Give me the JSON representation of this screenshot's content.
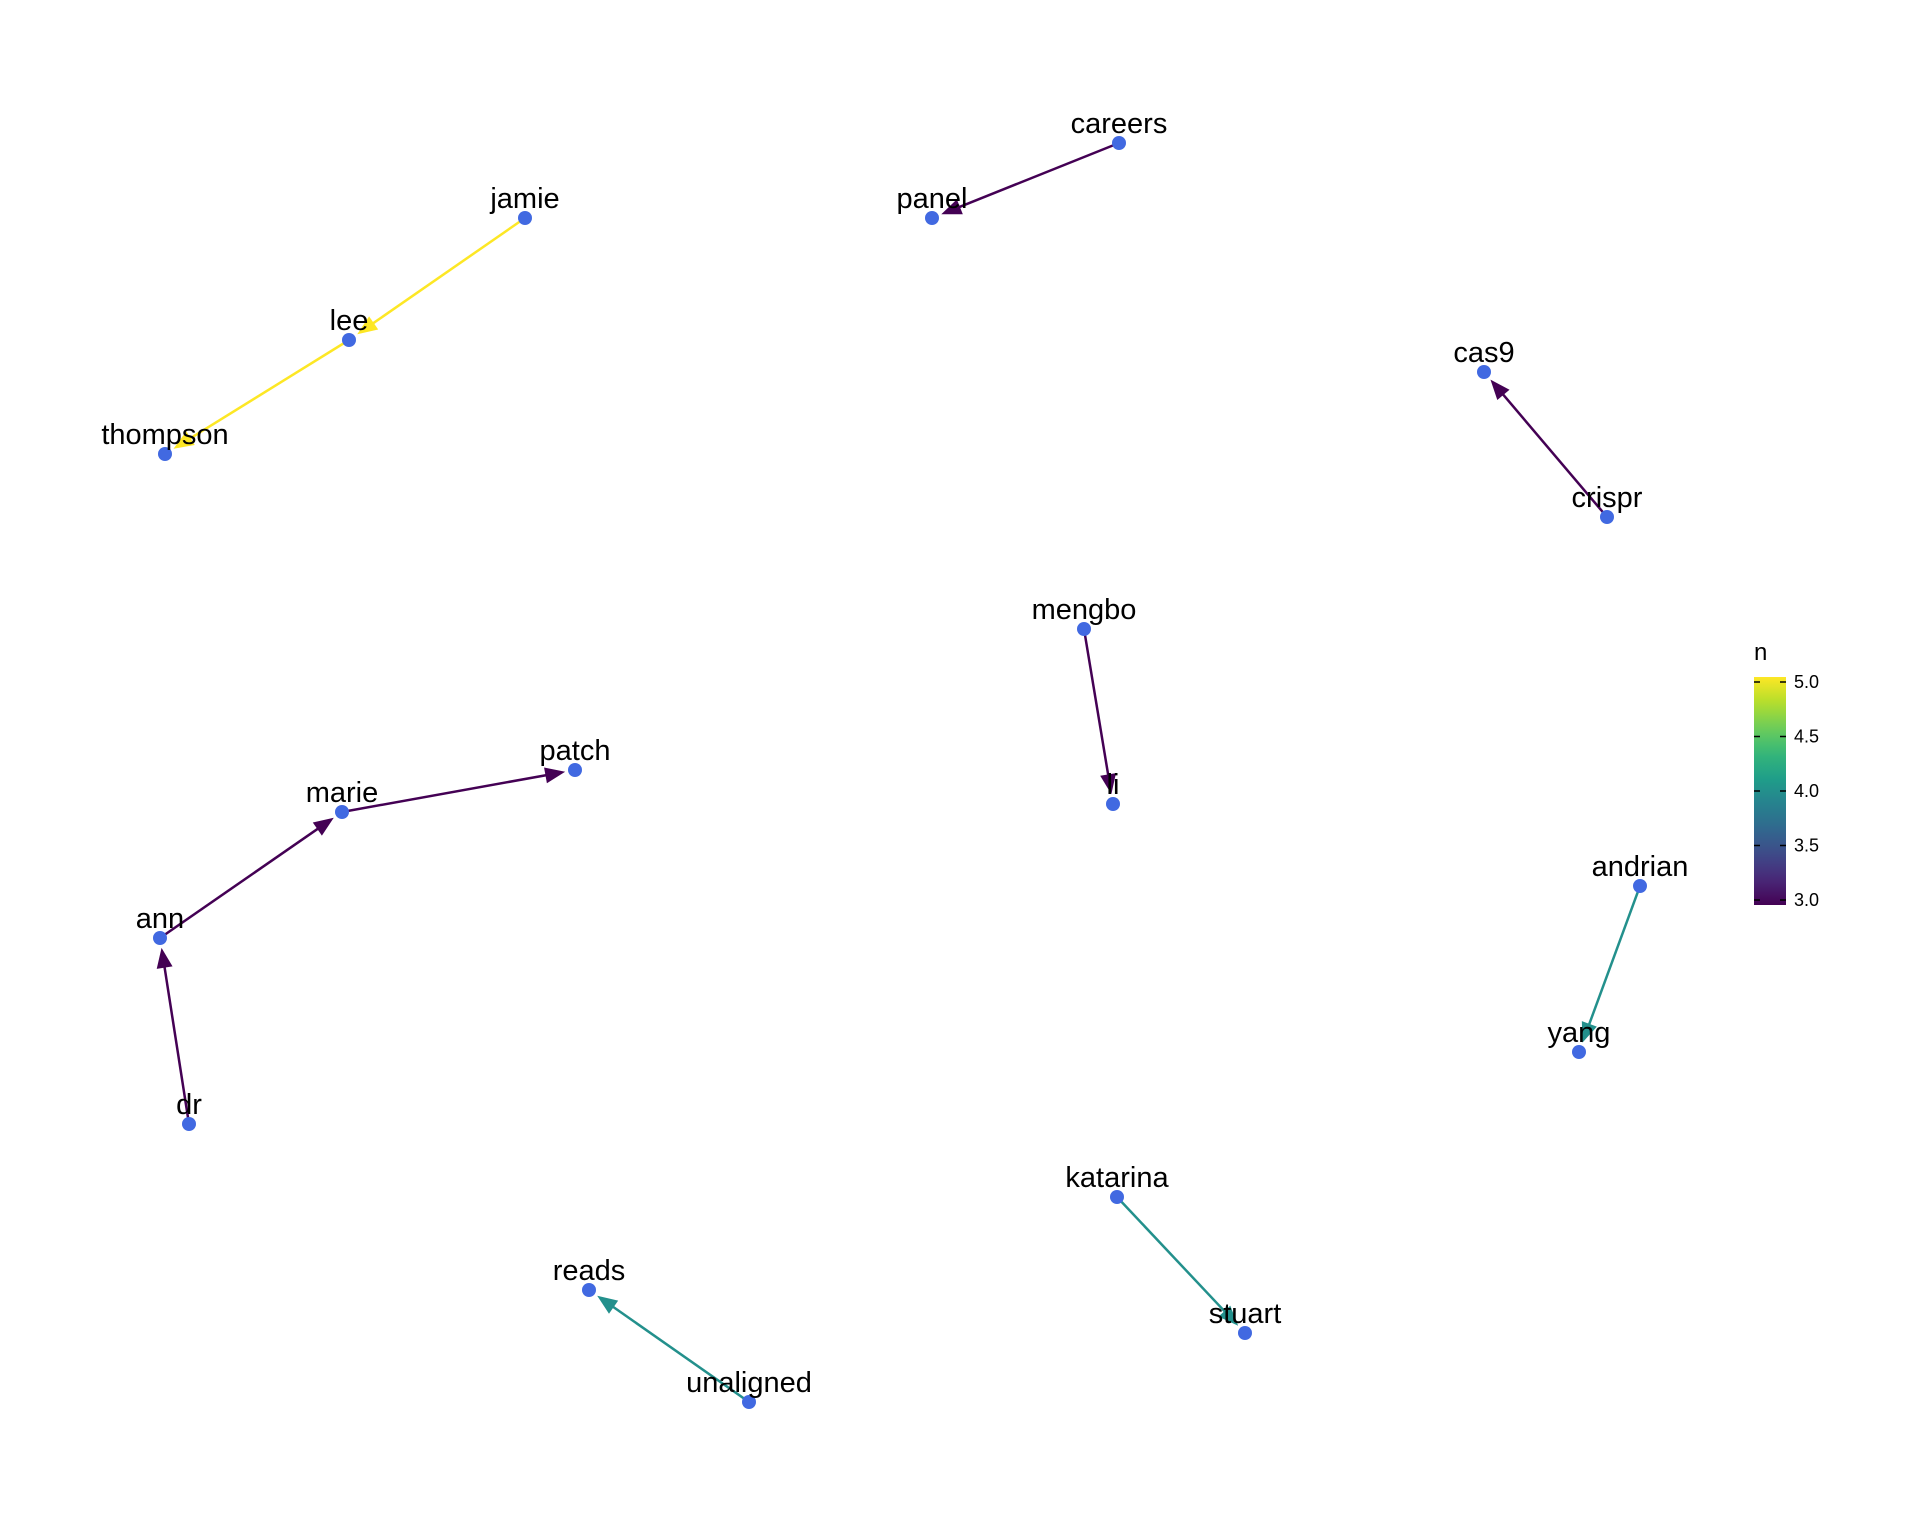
{
  "chart_data": {
    "type": "network",
    "directed": true,
    "edge_color_variable": "n",
    "node_color": "#4169E1",
    "nodes": [
      "jamie",
      "lee",
      "thompson",
      "careers",
      "panel",
      "cas9",
      "crispr",
      "mengbo",
      "li",
      "patch",
      "marie",
      "ann",
      "dr",
      "andrian",
      "yang",
      "katarina",
      "stuart",
      "reads",
      "unaligned"
    ],
    "edges": [
      {
        "from": "jamie",
        "to": "lee",
        "n": 5
      },
      {
        "from": "lee",
        "to": "thompson",
        "n": 5
      },
      {
        "from": "careers",
        "to": "panel",
        "n": 3
      },
      {
        "from": "crispr",
        "to": "cas9",
        "n": 3
      },
      {
        "from": "mengbo",
        "to": "li",
        "n": 3
      },
      {
        "from": "marie",
        "to": "patch",
        "n": 3
      },
      {
        "from": "ann",
        "to": "marie",
        "n": 3
      },
      {
        "from": "dr",
        "to": "ann",
        "n": 3
      },
      {
        "from": "andrian",
        "to": "yang",
        "n": 4
      },
      {
        "from": "katarina",
        "to": "stuart",
        "n": 4
      },
      {
        "from": "unaligned",
        "to": "reads",
        "n": 4
      }
    ],
    "legend": {
      "title": "n",
      "ticks": [
        "3.0",
        "3.5",
        "4.0",
        "4.5",
        "5.0"
      ],
      "range": [
        3,
        5
      ],
      "colormap": "viridis",
      "placement": "right"
    }
  }
}
